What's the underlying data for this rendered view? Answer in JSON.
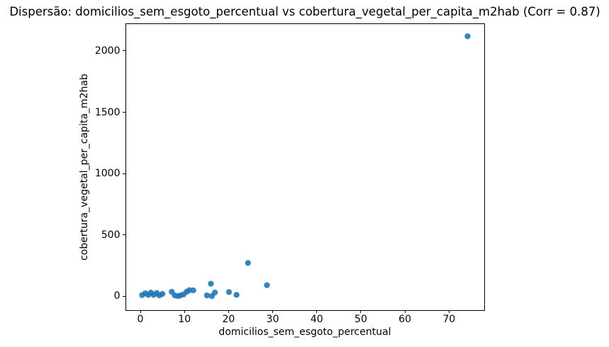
{
  "figure": {
    "background_color": "#ffffff",
    "text_color": "#000000"
  },
  "chart_data": {
    "type": "scatter",
    "title": "Dispersão: domicilios_sem_esgoto_percentual vs cobertura_vegetal_per_capita_m2hab (Corr = 0.87)",
    "xlabel": "domicilios_sem_esgoto_percentual",
    "ylabel": "cobertura_vegetal_per_capita_m2hab",
    "correlation": 0.87,
    "marker_color": "#1f77b4",
    "marker_shape": "circle",
    "grid": false,
    "legend": false,
    "xlim": [
      -3.3,
      77.9
    ],
    "ylim": [
      -110,
      2225
    ],
    "xticks": [
      0,
      10,
      20,
      30,
      40,
      50,
      60,
      70
    ],
    "yticks": [
      0,
      500,
      1000,
      1500,
      2000
    ],
    "points": [
      [
        0.4,
        10
      ],
      [
        1.1,
        25
      ],
      [
        1.8,
        12
      ],
      [
        2.4,
        30
      ],
      [
        3.0,
        12
      ],
      [
        3.7,
        27
      ],
      [
        4.3,
        8
      ],
      [
        5.0,
        20
      ],
      [
        7.1,
        37
      ],
      [
        7.8,
        8
      ],
      [
        8.5,
        2
      ],
      [
        9.1,
        8
      ],
      [
        9.8,
        16
      ],
      [
        10.5,
        37
      ],
      [
        11.1,
        50
      ],
      [
        12.0,
        49
      ],
      [
        15.1,
        8
      ],
      [
        16.0,
        103
      ],
      [
        16.2,
        2
      ],
      [
        16.9,
        31
      ],
      [
        20.1,
        35
      ],
      [
        21.8,
        12
      ],
      [
        24.4,
        272
      ],
      [
        28.7,
        91
      ],
      [
        74.2,
        2120
      ]
    ]
  }
}
